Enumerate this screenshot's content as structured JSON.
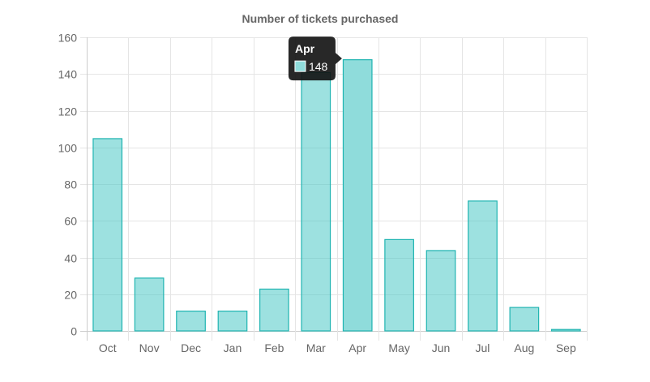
{
  "chart_data": {
    "type": "bar",
    "title": "Number of tickets purchased",
    "xlabel": "",
    "ylabel": "",
    "categories": [
      "Oct",
      "Nov",
      "Dec",
      "Jan",
      "Feb",
      "Mar",
      "Apr",
      "May",
      "Jun",
      "Jul",
      "Aug",
      "Sep"
    ],
    "values": [
      105,
      29,
      11,
      11,
      23,
      141,
      148,
      50,
      44,
      71,
      13,
      1
    ],
    "ylim": [
      0,
      160
    ],
    "yticks": [
      0,
      20,
      40,
      60,
      80,
      100,
      120,
      140,
      160
    ],
    "grid": true,
    "legend": "none",
    "colors": {
      "bar_fill": "#4dc9c6",
      "bar_fill_opacity": 0.55,
      "bar_fill_hover_opacity": 0.6,
      "bar_border": "#1fb4b1",
      "hover_fill": "#8fdcdb",
      "grid": "#e5e5e5",
      "axis": "#cccccc",
      "text": "#666666",
      "tooltip_bg": "#111111"
    },
    "tooltip": {
      "category": "Apr",
      "value": "148",
      "active_index": 6
    }
  }
}
